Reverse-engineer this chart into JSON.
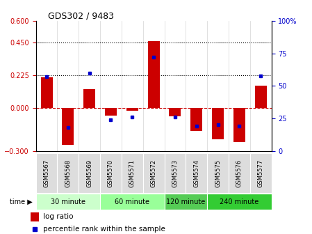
{
  "title": "GDS302 / 9483",
  "samples": [
    "GSM5567",
    "GSM5568",
    "GSM5569",
    "GSM5570",
    "GSM5571",
    "GSM5572",
    "GSM5573",
    "GSM5574",
    "GSM5575",
    "GSM5576",
    "GSM5577"
  ],
  "log_ratio": [
    0.21,
    -0.26,
    0.13,
    -0.055,
    -0.02,
    0.46,
    -0.06,
    -0.16,
    -0.22,
    -0.24,
    0.15
  ],
  "percentile": [
    57,
    18,
    60,
    24,
    26,
    72,
    26,
    19,
    20,
    19,
    58
  ],
  "bar_color": "#cc0000",
  "dot_color": "#0000cc",
  "ylim_left": [
    -0.3,
    0.6
  ],
  "ylim_right": [
    0,
    100
  ],
  "yticks_left": [
    -0.3,
    0.0,
    0.225,
    0.45,
    0.6
  ],
  "yticks_right": [
    0,
    25,
    50,
    75,
    100
  ],
  "hline_zero": 0.0,
  "hline_dotted": [
    0.225,
    0.45
  ],
  "groups": [
    {
      "label": "30 minute",
      "start": 0,
      "end": 3,
      "color": "#ccffcc"
    },
    {
      "label": "60 minute",
      "start": 3,
      "end": 6,
      "color": "#99ff99"
    },
    {
      "label": "120 minute",
      "start": 6,
      "end": 8,
      "color": "#55cc55"
    },
    {
      "label": "240 minute",
      "start": 8,
      "end": 11,
      "color": "#33cc33"
    }
  ],
  "time_label": "time ▶",
  "legend_log_ratio": "log ratio",
  "legend_percentile": "percentile rank within the sample",
  "background_color": "#ffffff",
  "tick_label_color_left": "#cc0000",
  "tick_label_color_right": "#0000cc",
  "bar_width": 0.55,
  "xticklabel_bg": "#dddddd"
}
